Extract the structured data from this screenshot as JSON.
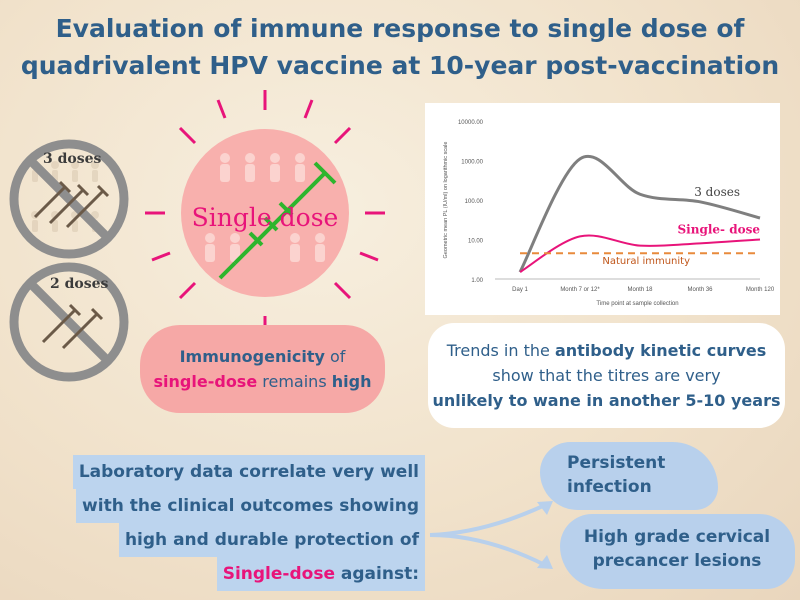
{
  "title": {
    "line1": "Evaluation of immune response to single dose of",
    "line2": "quadrivalent HPV vaccine at 10-year post-vaccination"
  },
  "badges": {
    "three_doses": "3 doses",
    "two_doses": "2 doses"
  },
  "center": {
    "label": "Single dose"
  },
  "immunogenicity_callout": {
    "part1": "Immunogenicity",
    "part2": " of",
    "part3": "single-dose",
    "part4": " remains ",
    "part5": "high"
  },
  "chart_data": {
    "type": "line",
    "ylabel": "Geometric mean PL (IU/ml) on logarithmic scale",
    "xlabel": "Time point at sample collection",
    "y_scale": "log",
    "y_ticks": [
      "1.00",
      "10.00",
      "100.00",
      "1000.00",
      "10000.00"
    ],
    "categories": [
      "Day 1",
      "Month 7 or 12*",
      "Month 18",
      "Month 36",
      "Month 120"
    ],
    "series": [
      {
        "name": "3 doses",
        "color": "#7f7f7f",
        "values": [
          1.5,
          1100,
          140,
          90,
          35
        ]
      },
      {
        "name": "Single- dose",
        "color": "#e8147a",
        "values": [
          1.5,
          12,
          7,
          8,
          10
        ]
      },
      {
        "name": "Natural immunity",
        "color": "#e88a3c",
        "values": [
          4.5,
          4.5,
          4.5,
          4.5,
          4.5
        ]
      }
    ]
  },
  "trend_text": {
    "a": "Trends in the ",
    "b": "antibody kinetic curves",
    "c": "show that the titres are very",
    "d": "unlikely to wane in another 5-10 years"
  },
  "lab_text": {
    "line1": "Laboratory data correlate very well",
    "line2": "with the clinical outcomes showing",
    "line3": "high and durable protection of",
    "line4_pink": "Single-dose",
    "line4_rest": " against:"
  },
  "outcomes": {
    "first": "Persistent infection",
    "first_l1": "Persistent",
    "first_l2": "infection",
    "second_l1": "High grade cervical",
    "second_l2": "precancer lesions"
  },
  "colors": {
    "title": "#2f5f8a",
    "pink": "#e8147a",
    "callout_pink": "#f6a8a6",
    "blue_highlight": "#bcd4ee",
    "gray_circle": "#8e8e8e"
  }
}
